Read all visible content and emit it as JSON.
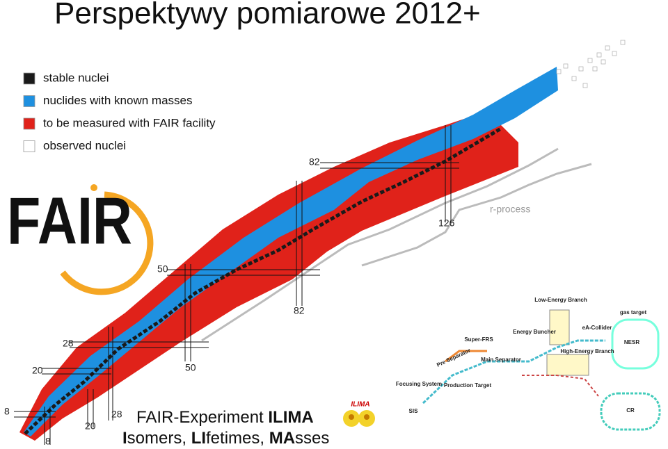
{
  "title": "Perspektywy pomiarowe 2012+",
  "legend": [
    {
      "label": "stable nuclei",
      "color": "#1a1a1a"
    },
    {
      "label": "nuclides with known masses",
      "color": "#1e90e0"
    },
    {
      "label": "to be measured with FAIR facility",
      "color": "#e0221a"
    },
    {
      "label": "observed nuclei",
      "color": "#ffffff"
    }
  ],
  "magic_numbers": [
    "82",
    "126",
    "50",
    "82",
    "28",
    "50",
    "20",
    "8",
    "28",
    "20",
    "8"
  ],
  "annotation": "r-process",
  "fair_logo": "FAIR",
  "experiment": {
    "line1": [
      "FAIR-Experiment ",
      "ILIMA"
    ],
    "line2": [
      "I",
      "somers, ",
      "LI",
      "fetimes, ",
      "MA",
      "sses"
    ]
  },
  "ilima_logo": "ILIMA",
  "facility": [
    "Low-Energy Branch",
    "gas target",
    "Energy Buncher",
    "eA-Collider",
    "Super-FRS",
    "NESR",
    "High-Energy Branch",
    "Pre Separator",
    "Main Separator",
    "Focusing System",
    "Production Target",
    "SIS",
    "CR"
  ]
}
